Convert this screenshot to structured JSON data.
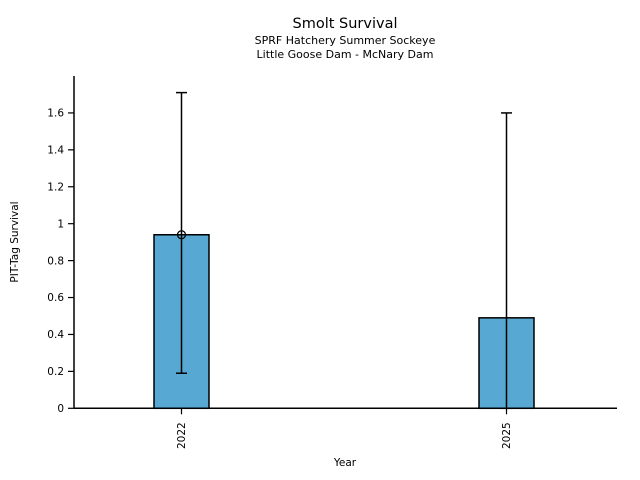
{
  "chart_data": {
    "type": "bar",
    "title": "Smolt Survival",
    "subtitle1": "SPRF Hatchery Summer Sockeye",
    "subtitle2": "Little Goose Dam - McNary Dam",
    "xlabel": "Year",
    "ylabel": "PIT-Tag Survival",
    "categories": [
      "2022",
      "2025"
    ],
    "values": [
      0.94,
      0.49
    ],
    "error_low": [
      0.19,
      0.0
    ],
    "error_high": [
      1.71,
      1.6
    ],
    "point_markers": [
      0.94,
      null
    ],
    "ylim": [
      0,
      1.8
    ],
    "yticks": [
      "0",
      "0.2",
      "0.4",
      "0.6",
      "0.8",
      "1",
      "1.2",
      "1.4",
      "1.6"
    ],
    "grid": false,
    "legend": "none",
    "colors": {
      "bar_fill": "#57A9D3",
      "bar_edge": "#000000",
      "error": "#000000",
      "axis": "#000000",
      "text": "#000000",
      "background": "#FFFFFF"
    }
  }
}
